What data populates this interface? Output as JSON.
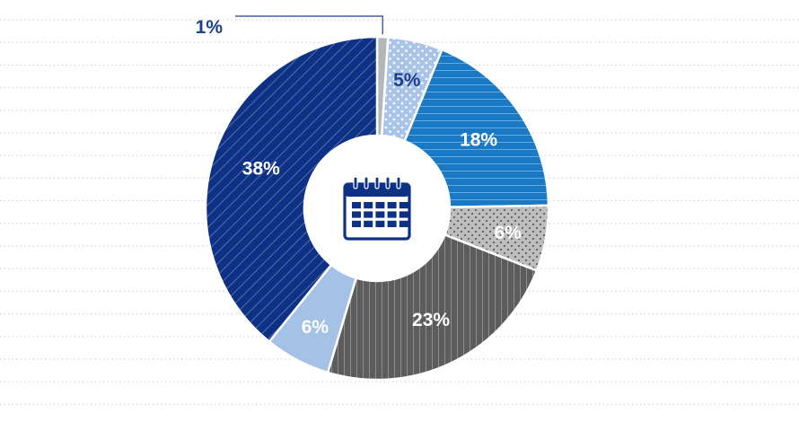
{
  "chart_data": {
    "type": "pie",
    "variant": "donut",
    "title": "",
    "center_icon": "calendar-icon",
    "slices": [
      {
        "label": "1%",
        "value": 1,
        "color": "#b3b7b9",
        "pattern": "solid",
        "label_color": "#1d3f8e"
      },
      {
        "label": "5%",
        "value": 5,
        "color": "#a9c4e8",
        "pattern": "dots-white",
        "label_color": "#1d3f8e"
      },
      {
        "label": "18%",
        "value": 18,
        "color": "#1a79c4",
        "pattern": "hlines",
        "label_color": "#ffffff"
      },
      {
        "label": "6%",
        "value": 6,
        "color": "#b9b9b9",
        "pattern": "dots-dark",
        "label_color": "#ffffff"
      },
      {
        "label": "23%",
        "value": 23,
        "color": "#5c5c5c",
        "pattern": "vlines",
        "label_color": "#ffffff"
      },
      {
        "label": "6%",
        "value": 6,
        "color": "#a4c2e6",
        "pattern": "solid",
        "label_color": "#ffffff"
      },
      {
        "label": "38%",
        "value": 38,
        "color": "#0d3185",
        "pattern": "diag",
        "label_color": "#ffffff"
      }
    ],
    "grid": true,
    "legend": "none"
  }
}
